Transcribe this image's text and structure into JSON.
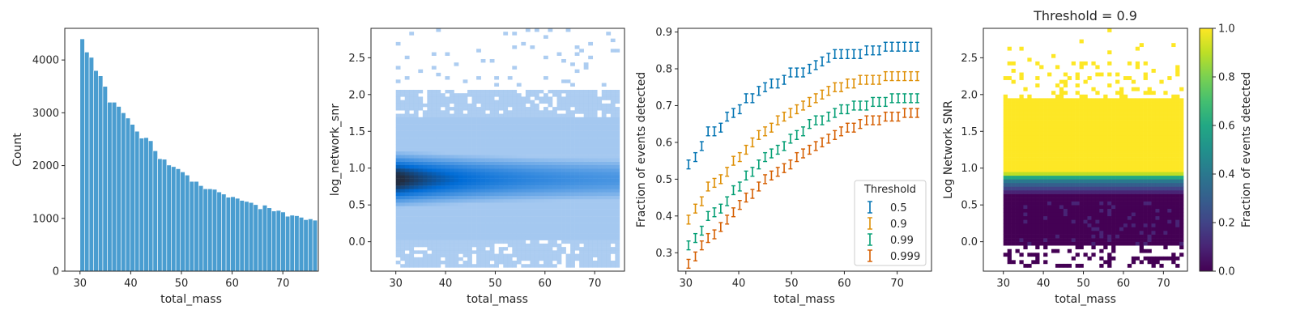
{
  "chart_data": [
    {
      "type": "bar",
      "xlabel": "total_mass",
      "ylabel": "Count",
      "xlim": [
        27,
        77
      ],
      "ylim": [
        0,
        4600
      ],
      "xticks": [
        30,
        40,
        50,
        60,
        70
      ],
      "yticks": [
        0,
        1000,
        2000,
        3000,
        4000
      ],
      "bin_start": 30,
      "bin_width": 0.9,
      "values": [
        4400,
        4150,
        4050,
        3800,
        3700,
        3500,
        3200,
        3200,
        3120,
        3000,
        2900,
        2780,
        2650,
        2520,
        2530,
        2470,
        2280,
        2130,
        2120,
        2010,
        1980,
        1940,
        1880,
        1820,
        1700,
        1700,
        1620,
        1560,
        1560,
        1550,
        1500,
        1460,
        1400,
        1410,
        1380,
        1340,
        1320,
        1300,
        1260,
        1180,
        1250,
        1200,
        1140,
        1150,
        1120,
        1040,
        1060,
        1050,
        1020,
        975,
        990,
        965
      ],
      "color": "#2a8cc8"
    },
    {
      "type": "heatmap",
      "xlabel": "total_mass",
      "ylabel": "log_network_snr",
      "xlim": [
        25,
        76
      ],
      "ylim": [
        -0.4,
        2.9
      ],
      "xticks": [
        30,
        40,
        50,
        60,
        70
      ],
      "yticks": [
        0.0,
        0.5,
        1.0,
        1.5,
        2.0,
        2.5
      ],
      "x_range": [
        30,
        75
      ],
      "y_range": [
        -0.35,
        2.9
      ],
      "center_y": 0.85,
      "peak_x": 31,
      "colors": [
        "#a4c8f0",
        "#006cd6",
        "#232d40"
      ]
    },
    {
      "type": "scatter",
      "xlabel": "total_mass",
      "ylabel": "Fraction of events detected",
      "xlim": [
        28.5,
        76.5
      ],
      "ylim": [
        0.25,
        0.91
      ],
      "xticks": [
        30,
        40,
        50,
        60,
        70
      ],
      "yticks": [
        0.3,
        0.4,
        0.5,
        0.6,
        0.7,
        0.8,
        0.9
      ],
      "x": [
        30.5,
        31.8,
        33.0,
        34.2,
        35.4,
        36.6,
        37.8,
        39.0,
        40.2,
        41.4,
        42.6,
        43.8,
        45.0,
        46.2,
        47.4,
        48.6,
        49.8,
        51.0,
        52.2,
        53.4,
        54.6,
        55.8,
        57.0,
        58.2,
        59.4,
        60.6,
        61.8,
        63.0,
        64.2,
        65.4,
        66.6,
        67.8,
        69.0,
        70.2,
        71.4,
        72.6,
        73.8
      ],
      "error": 0.012,
      "legend_title": "Threshold",
      "legend_position": "lower right",
      "series": [
        {
          "name": "0.5",
          "color": "#0173b2",
          "values": [
            0.54,
            0.56,
            0.59,
            0.63,
            0.63,
            0.64,
            0.67,
            0.68,
            0.69,
            0.72,
            0.72,
            0.74,
            0.75,
            0.76,
            0.76,
            0.77,
            0.79,
            0.79,
            0.79,
            0.8,
            0.81,
            0.82,
            0.83,
            0.84,
            0.84,
            0.84,
            0.84,
            0.84,
            0.85,
            0.85,
            0.85,
            0.86,
            0.86,
            0.86,
            0.86,
            0.86,
            0.86
          ]
        },
        {
          "name": "0.9",
          "color": "#de8f05",
          "values": [
            0.39,
            0.42,
            0.44,
            0.48,
            0.49,
            0.5,
            0.52,
            0.55,
            0.56,
            0.58,
            0.6,
            0.62,
            0.63,
            0.64,
            0.66,
            0.67,
            0.68,
            0.69,
            0.7,
            0.71,
            0.72,
            0.73,
            0.74,
            0.75,
            0.75,
            0.76,
            0.76,
            0.77,
            0.77,
            0.77,
            0.77,
            0.78,
            0.78,
            0.78,
            0.78,
            0.78,
            0.78
          ]
        },
        {
          "name": "0.99",
          "color": "#029e73",
          "values": [
            0.32,
            0.34,
            0.36,
            0.4,
            0.41,
            0.42,
            0.44,
            0.47,
            0.48,
            0.51,
            0.52,
            0.54,
            0.56,
            0.57,
            0.58,
            0.59,
            0.61,
            0.62,
            0.63,
            0.65,
            0.66,
            0.66,
            0.67,
            0.68,
            0.69,
            0.69,
            0.7,
            0.7,
            0.7,
            0.71,
            0.71,
            0.71,
            0.72,
            0.72,
            0.72,
            0.72,
            0.72
          ]
        },
        {
          "name": "0.999",
          "color": "#d55e00",
          "values": [
            0.27,
            0.29,
            0.32,
            0.34,
            0.35,
            0.37,
            0.39,
            0.41,
            0.43,
            0.45,
            0.46,
            0.48,
            0.5,
            0.51,
            0.52,
            0.53,
            0.54,
            0.56,
            0.57,
            0.58,
            0.59,
            0.6,
            0.61,
            0.62,
            0.63,
            0.64,
            0.64,
            0.65,
            0.66,
            0.66,
            0.66,
            0.67,
            0.67,
            0.67,
            0.68,
            0.68,
            0.68
          ]
        }
      ]
    },
    {
      "type": "heatmap",
      "title": "Threshold = 0.9",
      "xlabel": "total_mass",
      "ylabel": "Log Network SNR",
      "xlim": [
        25,
        76
      ],
      "ylim": [
        -0.4,
        2.9
      ],
      "xticks": [
        30,
        40,
        50,
        60,
        70
      ],
      "yticks": [
        0.0,
        0.5,
        1.0,
        1.5,
        2.0,
        2.5
      ],
      "x_range": [
        30,
        75
      ],
      "y_range": [
        -0.35,
        2.9
      ],
      "colorbar": {
        "label": "Fraction of events detected",
        "ticks": [
          0.0,
          0.2,
          0.4,
          0.6,
          0.8,
          1.0
        ],
        "range": [
          0,
          1
        ]
      },
      "colormap": "viridis"
    }
  ]
}
